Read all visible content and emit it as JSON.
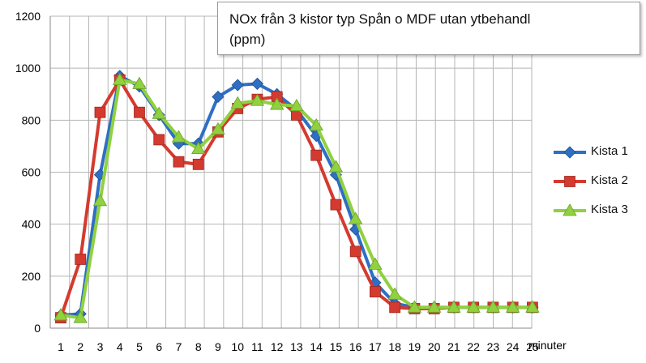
{
  "chart_data": {
    "type": "line",
    "title": "NOx från 3 kistor typ Spån o MDF utan ytbehandl (ppm)",
    "title_lines": [
      "NOx från 3 kistor typ Spån o MDF utan ytbehandl",
      "(ppm)"
    ],
    "xlabel": "minuter",
    "ylabel": "",
    "ylim": [
      0,
      1200
    ],
    "yticks": [
      0,
      200,
      400,
      600,
      800,
      1000,
      1200
    ],
    "x": [
      1,
      2,
      3,
      4,
      5,
      6,
      7,
      8,
      9,
      10,
      11,
      12,
      13,
      14,
      15,
      16,
      17,
      18,
      19,
      20,
      21,
      22,
      23,
      24,
      25
    ],
    "grid": true,
    "legend_position": "right",
    "series": [
      {
        "name": "Kista 1",
        "color": "#2e6fc4",
        "marker": "diamond",
        "values": [
          50,
          55,
          590,
          970,
          930,
          820,
          710,
          710,
          890,
          935,
          940,
          900,
          840,
          740,
          590,
          380,
          175,
          95,
          80,
          80,
          80,
          80,
          80,
          80,
          80
        ]
      },
      {
        "name": "Kista 2",
        "color": "#d43a2f",
        "marker": "square",
        "values": [
          40,
          265,
          830,
          955,
          830,
          725,
          640,
          630,
          755,
          845,
          880,
          890,
          820,
          665,
          475,
          295,
          140,
          80,
          75,
          75,
          80,
          80,
          80,
          80,
          80
        ]
      },
      {
        "name": "Kista 3",
        "color": "#8fd13f",
        "marker": "triangle",
        "values": [
          50,
          40,
          490,
          955,
          940,
          825,
          735,
          690,
          765,
          865,
          875,
          860,
          855,
          780,
          620,
          420,
          245,
          130,
          80,
          80,
          80,
          80,
          80,
          80,
          80
        ]
      }
    ]
  }
}
